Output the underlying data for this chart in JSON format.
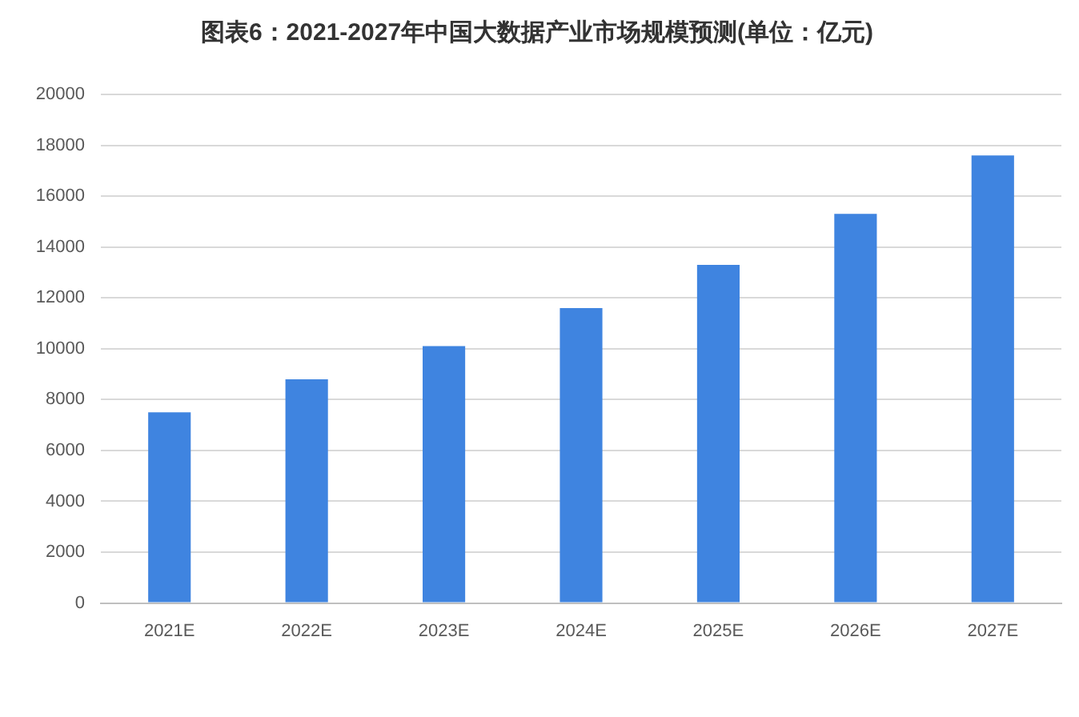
{
  "chart_data": {
    "type": "bar",
    "title": "图表6：2021-2027年中国大数据产业市场规模预测(单位：亿元)",
    "categories": [
      "2021E",
      "2022E",
      "2023E",
      "2024E",
      "2025E",
      "2026E",
      "2027E"
    ],
    "values": [
      7500,
      8800,
      10100,
      11600,
      13300,
      15300,
      17600
    ],
    "color": "#3f84e0",
    "ylim": [
      0,
      20000
    ],
    "yticks": [
      0,
      2000,
      4000,
      6000,
      8000,
      10000,
      12000,
      14000,
      16000,
      18000,
      20000
    ],
    "grid": "y"
  }
}
